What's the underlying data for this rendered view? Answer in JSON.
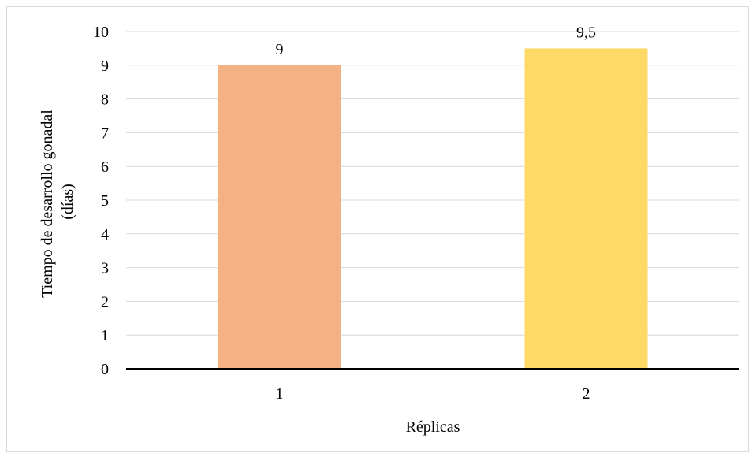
{
  "chart_data": {
    "type": "bar",
    "title": "",
    "xlabel": "Réplicas",
    "ylabel_lines": [
      "Tiempo de desarrollo gonadal",
      "(días)"
    ],
    "categories": [
      "1",
      "2"
    ],
    "values": [
      9,
      9.5
    ],
    "value_labels": [
      "9",
      "9,5"
    ],
    "bar_colors": [
      "#F4B183",
      "#FFD966"
    ],
    "ylim": [
      0,
      10
    ],
    "yticks": [
      "0",
      "1",
      "2",
      "3",
      "4",
      "5",
      "6",
      "7",
      "8",
      "9",
      "10"
    ],
    "grid": true,
    "legend": "none"
  },
  "colors": {
    "gridline": "#d9d9d9",
    "axis": "#000000",
    "frame": "#d9d9d9"
  }
}
